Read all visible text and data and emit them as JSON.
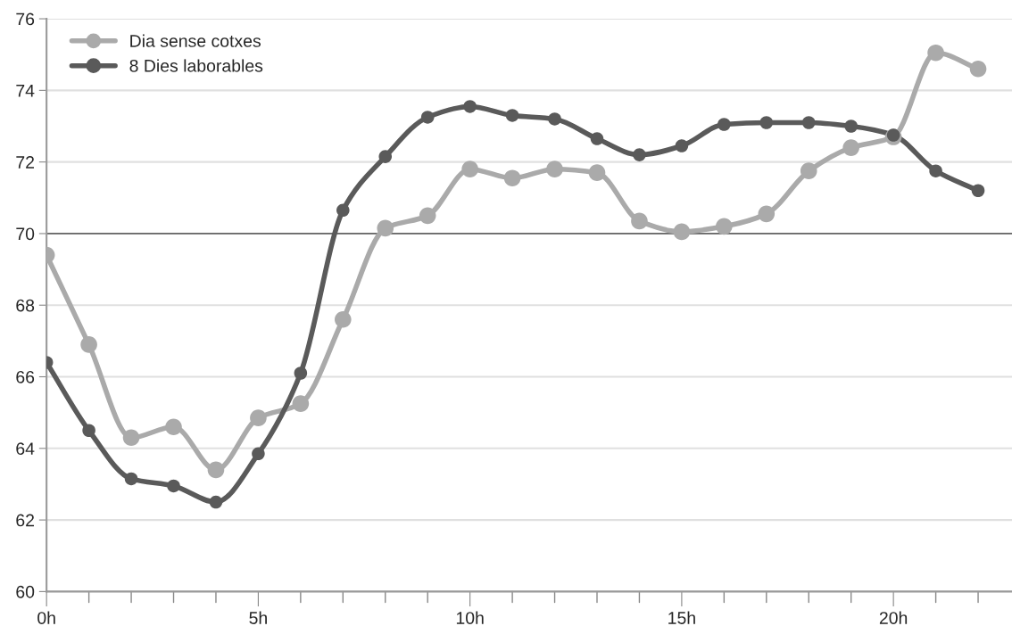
{
  "chart_data": {
    "type": "line",
    "x": [
      0,
      1,
      2,
      3,
      4,
      5,
      6,
      7,
      8,
      9,
      10,
      11,
      12,
      13,
      14,
      15,
      16,
      17,
      18,
      19,
      20,
      21,
      22
    ],
    "series": [
      {
        "name": "Dia sense cotxes",
        "color": "#aaaaaa",
        "values": [
          69.4,
          66.9,
          64.3,
          64.6,
          63.4,
          64.85,
          65.25,
          67.6,
          70.15,
          70.5,
          71.8,
          71.55,
          71.8,
          71.7,
          70.35,
          70.05,
          70.2,
          70.55,
          71.75,
          72.4,
          72.7,
          75.05,
          74.6
        ]
      },
      {
        "name": "8 Dies laborables",
        "color": "#5a5a5a",
        "values": [
          66.4,
          64.5,
          63.15,
          62.95,
          62.5,
          63.85,
          66.1,
          70.65,
          72.15,
          73.25,
          73.55,
          73.3,
          73.2,
          72.65,
          72.2,
          72.45,
          73.05,
          73.1,
          73.1,
          73.0,
          72.75,
          71.75,
          71.2
        ]
      }
    ],
    "xlim": [
      0,
      22.8
    ],
    "xticks": [
      {
        "value": 0,
        "label": "0h"
      },
      {
        "value": 1,
        "label": null
      },
      {
        "value": 2,
        "label": null
      },
      {
        "value": 3,
        "label": null
      },
      {
        "value": 4,
        "label": null
      },
      {
        "value": 5,
        "label": "5h"
      },
      {
        "value": 6,
        "label": null
      },
      {
        "value": 7,
        "label": null
      },
      {
        "value": 8,
        "label": null
      },
      {
        "value": 9,
        "label": null
      },
      {
        "value": 10,
        "label": "10h"
      },
      {
        "value": 11,
        "label": null
      },
      {
        "value": 12,
        "label": null
      },
      {
        "value": 13,
        "label": null
      },
      {
        "value": 14,
        "label": null
      },
      {
        "value": 15,
        "label": "15h"
      },
      {
        "value": 16,
        "label": null
      },
      {
        "value": 17,
        "label": null
      },
      {
        "value": 18,
        "label": null
      },
      {
        "value": 19,
        "label": null
      },
      {
        "value": 20,
        "label": "20h"
      },
      {
        "value": 21,
        "label": null
      },
      {
        "value": 22,
        "label": null
      }
    ],
    "ylim": [
      60,
      76
    ],
    "yticks": [
      60,
      62,
      64,
      66,
      68,
      70,
      72,
      74,
      76
    ],
    "ref_lines": [
      {
        "axis": "y",
        "value": 70,
        "color": "#666666"
      }
    ],
    "grid": "y",
    "legend": "top left",
    "marker": "circle",
    "line_style": "solid"
  }
}
